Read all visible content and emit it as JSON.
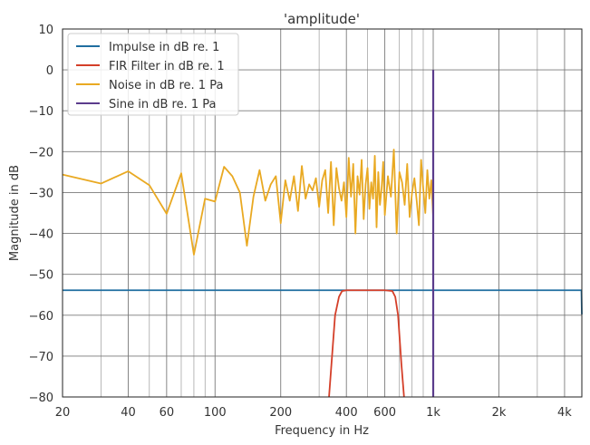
{
  "chart_data": {
    "type": "line",
    "title": "'amplitude'",
    "xlabel": "Frequency in Hz",
    "ylabel": "Magnitude in dB",
    "xscale": "log",
    "xlim": [
      20,
      4800
    ],
    "ylim": [
      -80,
      10
    ],
    "grid": true,
    "legend_position": "top-left",
    "xticks": [
      {
        "value": 20,
        "label": "20"
      },
      {
        "value": 40,
        "label": "40"
      },
      {
        "value": 60,
        "label": "60"
      },
      {
        "value": 100,
        "label": "100"
      },
      {
        "value": 200,
        "label": "200"
      },
      {
        "value": 400,
        "label": "400"
      },
      {
        "value": 600,
        "label": "600"
      },
      {
        "value": 1000,
        "label": "1k"
      },
      {
        "value": 2000,
        "label": "2k"
      },
      {
        "value": 4000,
        "label": "4k"
      }
    ],
    "minor_xticks": [
      30,
      50,
      70,
      80,
      90,
      300,
      500,
      700,
      800,
      900,
      3000
    ],
    "yticks": [
      10,
      0,
      -10,
      -20,
      -30,
      -40,
      -50,
      -60,
      -70,
      -80
    ],
    "ytick_labels": [
      "10",
      "0",
      "−10",
      "−20",
      "−30",
      "−40",
      "−50",
      "−60",
      "−70",
      "−80"
    ],
    "series": [
      {
        "name": "Impulse in dB re. 1",
        "color": "#1f6ea0",
        "x": [
          20,
          4780,
          4800
        ],
        "y": [
          -53.9,
          -53.9,
          -59.8
        ]
      },
      {
        "name": "FIR Filter in dB re. 1",
        "color": "#d43f29",
        "x": [
          333,
          355,
          370,
          382,
          400,
          600,
          650,
          670,
          690,
          715,
          735
        ],
        "y": [
          -80,
          -60,
          -55.5,
          -54.1,
          -53.9,
          -53.9,
          -54.1,
          -55.5,
          -60,
          -72,
          -80
        ]
      },
      {
        "name": "Noise in dB re. 1 Pa",
        "color": "#e9a922",
        "x": [
          20,
          30,
          40,
          50,
          60,
          70,
          80,
          90,
          100,
          110,
          120,
          130,
          140,
          150,
          160,
          170,
          180,
          190,
          200,
          210,
          220,
          230,
          240,
          250,
          260,
          270,
          280,
          290,
          300,
          310,
          320,
          330,
          340,
          350,
          360,
          370,
          380,
          390,
          400,
          410,
          420,
          430,
          440,
          450,
          460,
          470,
          480,
          490,
          500,
          510,
          520,
          530,
          540,
          550,
          560,
          570,
          580,
          590,
          600,
          620,
          640,
          660,
          680,
          700,
          720,
          740,
          760,
          780,
          800,
          820,
          840,
          860,
          880,
          900,
          920,
          940,
          960,
          980,
          1000
        ],
        "y": [
          -25.6,
          -27.8,
          -24.8,
          -28.2,
          -35.2,
          -25.3,
          -45.2,
          -31.5,
          -32.2,
          -23.7,
          -26,
          -30,
          -43,
          -31,
          -24.5,
          -32,
          -28,
          -26,
          -37.5,
          -27,
          -32,
          -26,
          -34.5,
          -23.5,
          -31.5,
          -28,
          -29.5,
          -26.5,
          -33.5,
          -27,
          -24.5,
          -35,
          -22.5,
          -38,
          -24,
          -29,
          -32,
          -27.5,
          -36,
          -21.5,
          -31,
          -23,
          -40,
          -26,
          -30.5,
          -22,
          -36.5,
          -28,
          -24,
          -34,
          -27.5,
          -31.5,
          -21,
          -38.5,
          -25,
          -33,
          -29,
          -22.5,
          -35.5,
          -26,
          -31,
          -19.5,
          -40,
          -25,
          -27.5,
          -33,
          -23,
          -36,
          -30,
          -26.5,
          -32,
          -38,
          -22,
          -29,
          -35,
          -24.5,
          -31.5,
          -27,
          -36
        ]
      },
      {
        "name": "Sine in dB re. 1 Pa",
        "color": "#5b3c8c",
        "x": [
          1000,
          1000
        ],
        "y": [
          -80,
          0
        ]
      }
    ]
  }
}
